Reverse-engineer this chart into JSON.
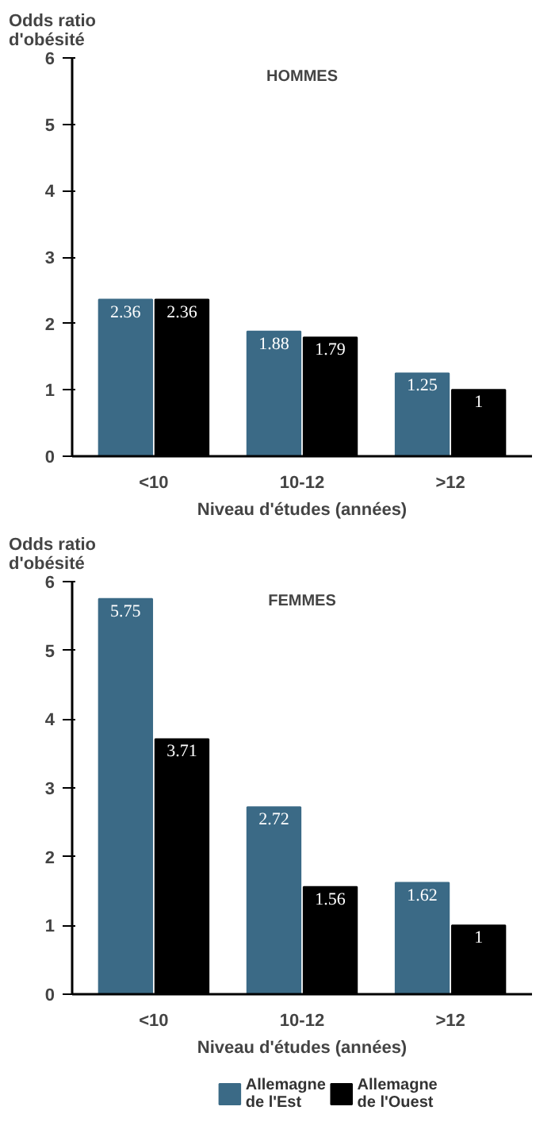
{
  "chart_data": [
    {
      "type": "bar",
      "title": "HOMMES",
      "ylabel": "Odds ratio\nd'obésité",
      "xlabel": "Niveau d'études (années)",
      "categories": [
        "<10",
        "10-12",
        ">12"
      ],
      "ylim": [
        0,
        6
      ],
      "yticks": [
        0,
        1,
        2,
        3,
        4,
        5,
        6
      ],
      "grid": false,
      "data_labels": true,
      "series": [
        {
          "color": "#3b6a86",
          "values": [
            2.36,
            1.88,
            1.25
          ]
        },
        {
          "color": "#000000",
          "values": [
            2.36,
            1.79,
            1
          ]
        }
      ]
    },
    {
      "type": "bar",
      "title": "FEMMES",
      "ylabel": "Odds ratio\nd'obésité",
      "xlabel": "Niveau d'études (années)",
      "categories": [
        "<10",
        "10-12",
        ">12"
      ],
      "ylim": [
        0,
        6
      ],
      "yticks": [
        0,
        1,
        2,
        3,
        4,
        5,
        6
      ],
      "grid": false,
      "data_labels": true,
      "legend": "bottom",
      "series": [
        {
          "name": "Allemagne\nde l'Est",
          "color": "#3b6a86",
          "values": [
            5.75,
            2.72,
            1.62
          ]
        },
        {
          "name": "Allemagne\nde l'Ouest",
          "color": "#000000",
          "values": [
            3.71,
            1.56,
            1
          ]
        }
      ]
    }
  ]
}
